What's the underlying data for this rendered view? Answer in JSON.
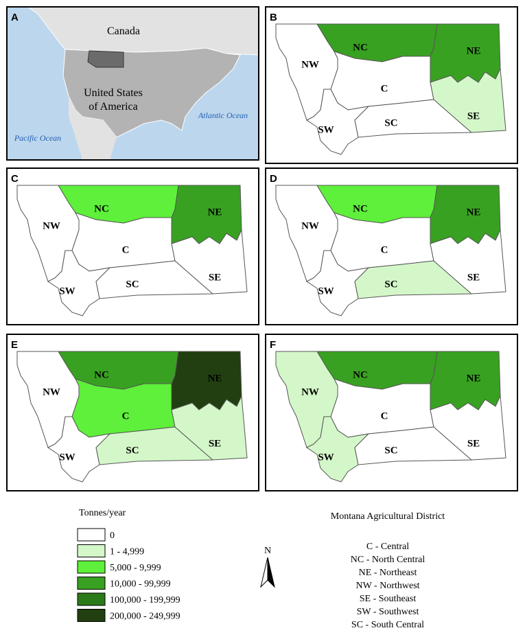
{
  "panel_a": {
    "label": "A",
    "canada": "Canada",
    "usa_line1": "United States",
    "usa_line2": "of America",
    "atlantic": "Atlantic Ocean",
    "pacific": "Pacific Ocean"
  },
  "district_panels": [
    {
      "label": "B",
      "districts": [
        {
          "name": "NW",
          "color": "#ffffff"
        },
        {
          "name": "NC",
          "color": "#38a121"
        },
        {
          "name": "NE",
          "color": "#38a121"
        },
        {
          "name": "C",
          "color": "#ffffff"
        },
        {
          "name": "SW",
          "color": "#ffffff"
        },
        {
          "name": "SC",
          "color": "#ffffff"
        },
        {
          "name": "SE",
          "color": "#d4f7c9"
        }
      ]
    },
    {
      "label": "C",
      "districts": [
        {
          "name": "NW",
          "color": "#ffffff"
        },
        {
          "name": "NC",
          "color": "#5ef03a"
        },
        {
          "name": "NE",
          "color": "#38a121"
        },
        {
          "name": "C",
          "color": "#ffffff"
        },
        {
          "name": "SW",
          "color": "#ffffff"
        },
        {
          "name": "SC",
          "color": "#ffffff"
        },
        {
          "name": "SE",
          "color": "#ffffff"
        }
      ]
    },
    {
      "label": "D",
      "districts": [
        {
          "name": "NW",
          "color": "#ffffff"
        },
        {
          "name": "NC",
          "color": "#5ef03a"
        },
        {
          "name": "NE",
          "color": "#38a121"
        },
        {
          "name": "C",
          "color": "#ffffff"
        },
        {
          "name": "SW",
          "color": "#ffffff"
        },
        {
          "name": "SC",
          "color": "#d4f7c9"
        },
        {
          "name": "SE",
          "color": "#ffffff"
        }
      ]
    },
    {
      "label": "E",
      "districts": [
        {
          "name": "NW",
          "color": "#ffffff"
        },
        {
          "name": "NC",
          "color": "#38a121"
        },
        {
          "name": "NE",
          "color": "#213f10"
        },
        {
          "name": "C",
          "color": "#5ef03a"
        },
        {
          "name": "SW",
          "color": "#ffffff"
        },
        {
          "name": "SC",
          "color": "#d4f7c9"
        },
        {
          "name": "SE",
          "color": "#d4f7c9"
        }
      ]
    },
    {
      "label": "F",
      "districts": [
        {
          "name": "NW",
          "color": "#d4f7c9"
        },
        {
          "name": "NC",
          "color": "#38a121"
        },
        {
          "name": "NE",
          "color": "#38a121"
        },
        {
          "name": "C",
          "color": "#ffffff"
        },
        {
          "name": "SW",
          "color": "#d4f7c9"
        },
        {
          "name": "SC",
          "color": "#ffffff"
        },
        {
          "name": "SE",
          "color": "#ffffff"
        }
      ]
    }
  ],
  "legend": {
    "title": "Tonnes/year",
    "items": [
      {
        "label": "0",
        "color": "#ffffff"
      },
      {
        "label": "1 - 4,999",
        "color": "#d4f7c9"
      },
      {
        "label": "5,000 - 9,999",
        "color": "#5ef03a"
      },
      {
        "label": "10,000 - 99,999",
        "color": "#38a121"
      },
      {
        "label": "100,000 - 199,999",
        "color": "#2b7a1a"
      },
      {
        "label": "200,000 - 249,999",
        "color": "#213f10"
      }
    ]
  },
  "north": "N",
  "key": {
    "title": "Montana Agricultural District",
    "entries": [
      "C - Central",
      "NC - North Central",
      "NE - Northeast",
      "NW - Northwest",
      "SE - Southeast",
      "SW - Southwest",
      "SC - South Central"
    ]
  }
}
